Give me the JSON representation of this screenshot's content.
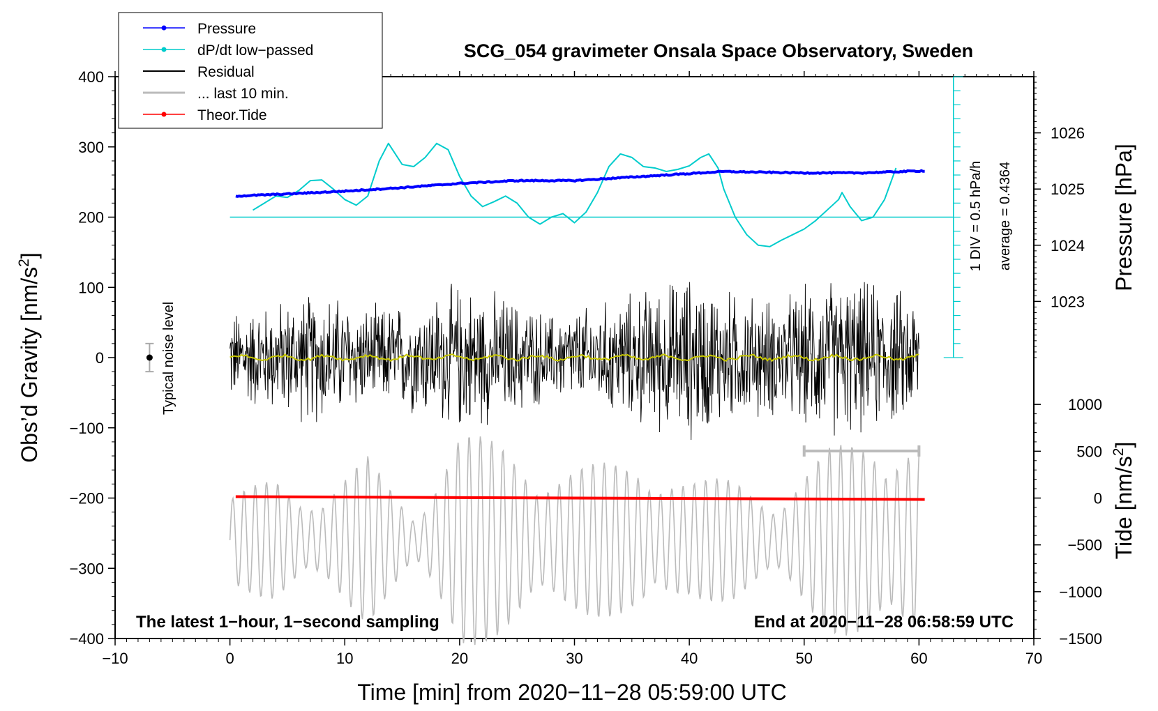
{
  "chart_data": {
    "type": "line",
    "title": "SCG_054 gravimeter Onsala Space Observatory, Sweden",
    "xlabel": "Time [min] from 2020−11−28 05:59:00 UTC",
    "ylabel": "Obs’d Gravity [nm/s²]",
    "ylabel_main": "Obs’d Gravity [nm/s",
    "ylabel_sup": "2",
    "ylabel_close": "]",
    "y2label_pressure": "Pressure [hPa]",
    "y2label_tide": "Tide [nm/s²]",
    "y2label_tide_main": "Tide [nm/s",
    "y2label_tide_sup": "2",
    "y2label_tide_close": "]",
    "xlim": [
      -10,
      70
    ],
    "ylim": [
      -400,
      400
    ],
    "x_ticks": [
      -10,
      0,
      10,
      20,
      30,
      40,
      50,
      60,
      70
    ],
    "x_tick_labels": [
      "−10",
      "0",
      "10",
      "20",
      "30",
      "40",
      "50",
      "60",
      "70"
    ],
    "y_ticks": [
      400,
      300,
      200,
      100,
      0,
      -100,
      -200,
      -300,
      -400
    ],
    "y_tick_labels": [
      "400",
      "300",
      "200",
      "100",
      "0",
      "−100",
      "−200",
      "−300",
      "−400"
    ],
    "pressure_axis": {
      "gravity_per_hpa": 80,
      "zero_gravity_at_hpa": 1022,
      "ticks": [
        1026,
        1025,
        1024,
        1023
      ],
      "tick_labels": [
        "1026",
        "1025",
        "1024",
        "1023"
      ]
    },
    "tide_axis": {
      "gravity_per_nms2": 0.133333,
      "zero_at_gravity": -200,
      "ticks": [
        1000,
        500,
        0,
        -500,
        -1000,
        -1500
      ],
      "tick_labels": [
        "1000",
        "500",
        "0",
        "−500",
        "−1000",
        "−1500"
      ]
    },
    "legend": [
      {
        "label": "Pressure",
        "color": "#0000ff",
        "marker": true
      },
      {
        "label": "dP/dt low−passed",
        "color": "#00cccc",
        "marker": true
      },
      {
        "label": "Residual",
        "color": "#000000",
        "marker": false
      },
      {
        "label": "... last 10 min.",
        "color": "#bbbbbb",
        "marker": false
      },
      {
        "label": "Theor.Tide",
        "color": "#ff0000",
        "marker": true
      }
    ],
    "series": [
      {
        "name": "Pressure",
        "color": "#0000ff",
        "x": [
          0.5,
          5,
          10,
          15,
          20,
          25,
          30,
          33,
          36,
          40,
          43,
          46,
          50,
          55,
          60.5
        ],
        "values": [
          230,
          233,
          237,
          242,
          248,
          252,
          252,
          255,
          258,
          262,
          265,
          264,
          263,
          263,
          266
        ]
      },
      {
        "name": "dP/dt low−passed",
        "color": "#00cccc",
        "x": [
          2,
          3,
          4,
          5,
          6,
          7,
          8,
          9,
          10,
          11,
          12,
          13,
          13.8,
          15,
          16,
          17,
          18,
          19,
          20,
          21,
          22,
          23,
          24,
          25,
          26,
          27,
          28,
          29,
          30,
          31,
          32,
          33,
          34,
          35,
          36,
          37,
          38,
          39,
          40,
          41,
          41.7,
          42.5,
          43,
          44,
          45,
          46,
          47,
          48,
          49,
          50,
          51,
          52,
          53,
          53.3,
          54,
          55,
          56,
          57,
          58
        ],
        "values": [
          210,
          220,
          230,
          228,
          238,
          252,
          253,
          240,
          225,
          217,
          230,
          280,
          305,
          275,
          272,
          285,
          305,
          296,
          258,
          230,
          215,
          222,
          230,
          220,
          200,
          190,
          200,
          205,
          192,
          207,
          235,
          272,
          290,
          285,
          272,
          270,
          265,
          268,
          273,
          285,
          290,
          270,
          240,
          200,
          175,
          160,
          158,
          167,
          175,
          183,
          195,
          210,
          225,
          235,
          215,
          195,
          200,
          225,
          270
        ]
      },
      {
        "name": "dP/dt baseline",
        "color": "#00cccc",
        "x": [
          0,
          63
        ],
        "values": [
          200,
          200
        ]
      },
      {
        "name": "Residual",
        "color": "#000000",
        "x_range": [
          0,
          60
        ],
        "envelope": [
          75,
          90,
          110,
          80,
          90,
          120,
          100,
          70,
          85,
          110,
          135,
          105,
          95,
          130,
          120,
          100
        ]
      },
      {
        "name": "Residual smoothed",
        "color": "#c8c800",
        "x_range": [
          0,
          60
        ],
        "mean": 0
      },
      {
        "name": "... last 10 min.",
        "color": "#bbbbbb",
        "x_range": [
          0,
          60
        ],
        "center": -260,
        "envelope": [
          60,
          95,
          60,
          120,
          40,
          155,
          140,
          100,
          110,
          120,
          85,
          90,
          60,
          130,
          160,
          145
        ]
      },
      {
        "name": "Theor.Tide",
        "color": "#ff0000",
        "x": [
          0.5,
          60.5
        ],
        "values": [
          -198,
          -202
        ]
      }
    ],
    "noise_level": {
      "x": -7,
      "value": 0,
      "error": 20,
      "label": "Typical noise level"
    },
    "last_10_min_bracket": {
      "x_start": 50,
      "x_end": 60,
      "value": -133
    },
    "dpdt_scale": {
      "x": 63,
      "y_bottom": 0,
      "y_top": 400,
      "div_value": 20,
      "label_div": "1 DIV = 0.5 hPa/h",
      "label_avg": "average = 0.4364"
    },
    "footer_left": "The latest 1−hour, 1−second sampling",
    "footer_right": "End at 2020−11−28 06:58:59 UTC"
  }
}
